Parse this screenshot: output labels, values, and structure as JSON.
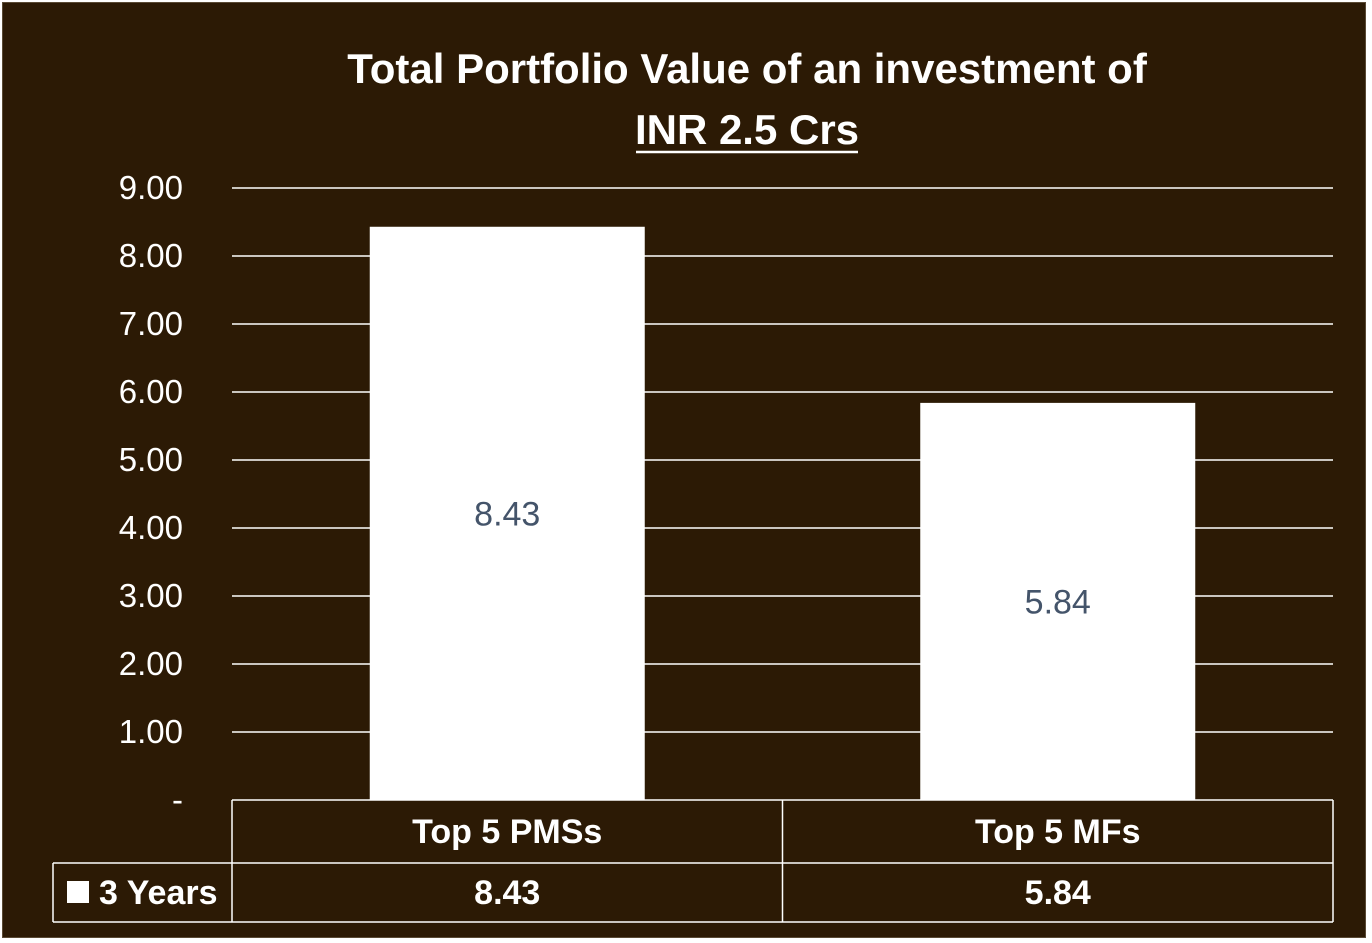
{
  "chart_data": {
    "type": "bar",
    "title_line1": "Total Portfolio Value of an investment of",
    "title_line2": "INR 2.5 Crs",
    "categories": [
      "Top 5 PMSs",
      "Top 5 MFs"
    ],
    "series": [
      {
        "name": "3 Years",
        "values": [
          8.43,
          5.84
        ]
      }
    ],
    "data_labels": [
      "8.43",
      "5.84"
    ],
    "table_values": [
      "8.43",
      "5.84"
    ],
    "ylim": [
      0,
      9
    ],
    "yticks": [
      0,
      1,
      2,
      3,
      4,
      5,
      6,
      7,
      8,
      9
    ],
    "ytick_labels": [
      "-",
      "1.00",
      "2.00",
      "3.00",
      "4.00",
      "5.00",
      "6.00",
      "7.00",
      "8.00",
      "9.00"
    ],
    "grid": true,
    "legend": "data-table",
    "colors": {
      "background": "#2c1a05",
      "bar": "#ffffff",
      "data_label": "#44546a",
      "text": "#ffffff"
    }
  }
}
